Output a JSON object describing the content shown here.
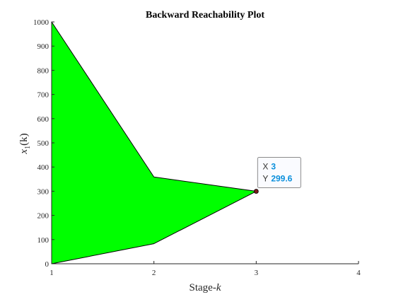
{
  "chart_data": {
    "type": "area",
    "title": "Backward Reachability Plot",
    "xlabel_text": "Stage-",
    "xlabel_var": "k",
    "ylabel_var": "x",
    "ylabel_sub": "1",
    "ylabel_arg": "(k)",
    "xlim": [
      1,
      4
    ],
    "ylim": [
      0,
      1000
    ],
    "x_ticks": [
      1,
      2,
      3,
      4
    ],
    "y_ticks": [
      0,
      100,
      200,
      300,
      400,
      500,
      600,
      700,
      800,
      900,
      1000
    ],
    "grid": false,
    "legend": "none",
    "fill_color": "#00ff00",
    "edge_color": "#000000",
    "upper_bound": {
      "x": [
        1,
        2,
        3
      ],
      "y": [
        1000,
        359,
        299.6
      ]
    },
    "lower_bound": {
      "x": [
        1,
        2,
        3
      ],
      "y": [
        0,
        83,
        299.6
      ]
    },
    "datatip": {
      "x_label": "X",
      "x_value": "3",
      "y_label": "Y",
      "y_value": "299.6",
      "point": {
        "x": 3,
        "y": 299.6
      },
      "value_color": "#0a8fdc"
    }
  }
}
